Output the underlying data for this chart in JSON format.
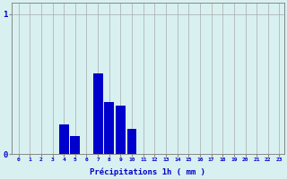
{
  "categories": [
    0,
    1,
    2,
    3,
    4,
    5,
    6,
    7,
    8,
    9,
    10,
    11,
    12,
    13,
    14,
    15,
    16,
    17,
    18,
    19,
    20,
    21,
    22,
    23
  ],
  "values": [
    0,
    0,
    0,
    0,
    0.21,
    0.13,
    0,
    0.58,
    0.37,
    0.35,
    0.18,
    0,
    0,
    0,
    0,
    0,
    0,
    0,
    0,
    0,
    0,
    0,
    0,
    0
  ],
  "bar_color": "#0000cc",
  "bg_color": "#d8f0f0",
  "xlabel": "Précipitations 1h ( mm )",
  "ylim": [
    0,
    1.08
  ],
  "xlim": [
    -0.6,
    23.4
  ],
  "yticks": [
    0,
    1
  ],
  "xticks": [
    0,
    1,
    2,
    3,
    4,
    5,
    6,
    7,
    8,
    9,
    10,
    11,
    12,
    13,
    14,
    15,
    16,
    17,
    18,
    19,
    20,
    21,
    22,
    23
  ],
  "grid_color": "#aaaaaa",
  "xlabel_color": "#0000cc",
  "tick_color": "#0000cc",
  "bar_width": 0.85
}
